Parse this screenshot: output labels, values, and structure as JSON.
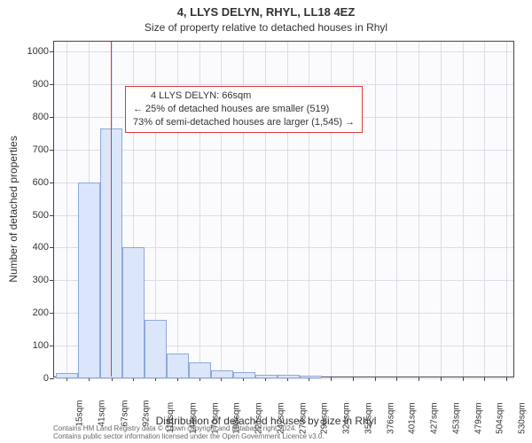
{
  "chart": {
    "type": "histogram",
    "title_line1": "4, LLYS DELYN, RHYL, LL18 4EZ",
    "title_line2": "Size of property relative to detached houses in Rhyl",
    "yaxis_title": "Number of detached properties",
    "xaxis_title": "Distribution of detached houses by size in Rhyl",
    "background_color": "#fbfbfe",
    "grid_color": "#dcdce8",
    "axis_color": "#444444",
    "bar_fill": "#dbe6fb",
    "bar_stroke": "#8fa8d8",
    "marker_color": "#d93b3b",
    "marker_x": 66,
    "xlim": [
      0,
      540
    ],
    "ylim": [
      0,
      1030
    ],
    "y_ticks": [
      0,
      100,
      200,
      300,
      400,
      500,
      600,
      700,
      800,
      900,
      1000
    ],
    "x_ticks": [
      {
        "v": 15,
        "label": "15sqm"
      },
      {
        "v": 41,
        "label": "41sqm"
      },
      {
        "v": 67,
        "label": "67sqm"
      },
      {
        "v": 92,
        "label": "92sqm"
      },
      {
        "v": 118,
        "label": "118sqm"
      },
      {
        "v": 144,
        "label": "144sqm"
      },
      {
        "v": 170,
        "label": "170sqm"
      },
      {
        "v": 195,
        "label": "195sqm"
      },
      {
        "v": 221,
        "label": "221sqm"
      },
      {
        "v": 247,
        "label": "247sqm"
      },
      {
        "v": 273,
        "label": "273sqm"
      },
      {
        "v": 298,
        "label": "298sqm"
      },
      {
        "v": 324,
        "label": "324sqm"
      },
      {
        "v": 350,
        "label": "350sqm"
      },
      {
        "v": 376,
        "label": "376sqm"
      },
      {
        "v": 401,
        "label": "401sqm"
      },
      {
        "v": 427,
        "label": "427sqm"
      },
      {
        "v": 453,
        "label": "453sqm"
      },
      {
        "v": 479,
        "label": "479sqm"
      },
      {
        "v": 504,
        "label": "504sqm"
      },
      {
        "v": 530,
        "label": "530sqm"
      }
    ],
    "bars": [
      {
        "x0": 2,
        "x1": 28,
        "y": 15
      },
      {
        "x0": 28,
        "x1": 54,
        "y": 600
      },
      {
        "x0": 54,
        "x1": 80,
        "y": 765
      },
      {
        "x0": 80,
        "x1": 106,
        "y": 400
      },
      {
        "x0": 106,
        "x1": 132,
        "y": 180
      },
      {
        "x0": 132,
        "x1": 158,
        "y": 75
      },
      {
        "x0": 158,
        "x1": 184,
        "y": 50
      },
      {
        "x0": 184,
        "x1": 210,
        "y": 25
      },
      {
        "x0": 210,
        "x1": 236,
        "y": 20
      },
      {
        "x0": 236,
        "x1": 262,
        "y": 12
      },
      {
        "x0": 262,
        "x1": 288,
        "y": 10
      },
      {
        "x0": 288,
        "x1": 314,
        "y": 8
      }
    ]
  },
  "annotation": {
    "line1": "4 LLYS DELYN: 66sqm",
    "line2": "← 25% of detached houses are smaller (519)",
    "line3": "73% of semi-detached houses are larger (1,545) →"
  },
  "footer": {
    "line1": "Contains HM Land Registry data © Crown copyright and database right 2024.",
    "line2": "Contains public sector information licensed under the Open Government Licence v3.0."
  }
}
